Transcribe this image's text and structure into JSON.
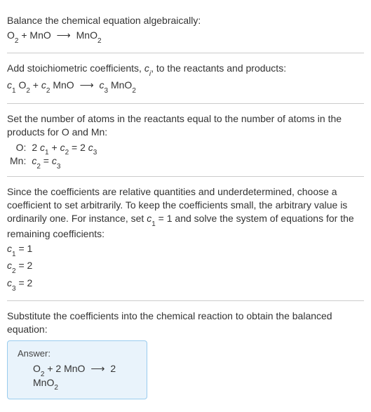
{
  "section1": {
    "line1": "Balance the chemical equation algebraically:"
  },
  "section2": {
    "line1_pre": "Add stoichiometric coefficients, ",
    "line1_ci": "c",
    "line1_ci_sub": "i",
    "line1_post": ", to the reactants and products:"
  },
  "section3": {
    "line1": "Set the number of atoms in the reactants equal to the number of atoms in the products for O and Mn:",
    "rowO_label": "O:",
    "rowMn_label": "Mn:"
  },
  "section4": {
    "line1": "Since the coefficients are relative quantities and underdetermined, choose a coefficient to set arbitrarily. To keep the coefficients small, the arbitrary value is ordinarily one. For instance, set ",
    "line1_cvar": "c",
    "line1_csub": "1",
    "line1_mid": " = 1 and solve the system of equations for the remaining coefficients:",
    "c1_lhs_var": "c",
    "c1_lhs_sub": "1",
    "c1_rhs": " = 1",
    "c2_lhs_var": "c",
    "c2_lhs_sub": "2",
    "c2_rhs": " = 2",
    "c3_lhs_var": "c",
    "c3_lhs_sub": "3",
    "c3_rhs": " = 2"
  },
  "section5": {
    "line1": "Substitute the coefficients into the chemical reaction to obtain the balanced equation:",
    "answer_label": "Answer:"
  },
  "chem": {
    "O": "O",
    "two": "2",
    "plus": " + ",
    "MnO": "MnO",
    "arrow": "⟶",
    "MnO2_Mn": "MnO",
    "c": "c",
    "one": "1",
    "three": "3",
    "space": " ",
    "two_coef": "2 ",
    "eq": " = ",
    "two_plain": "2"
  }
}
